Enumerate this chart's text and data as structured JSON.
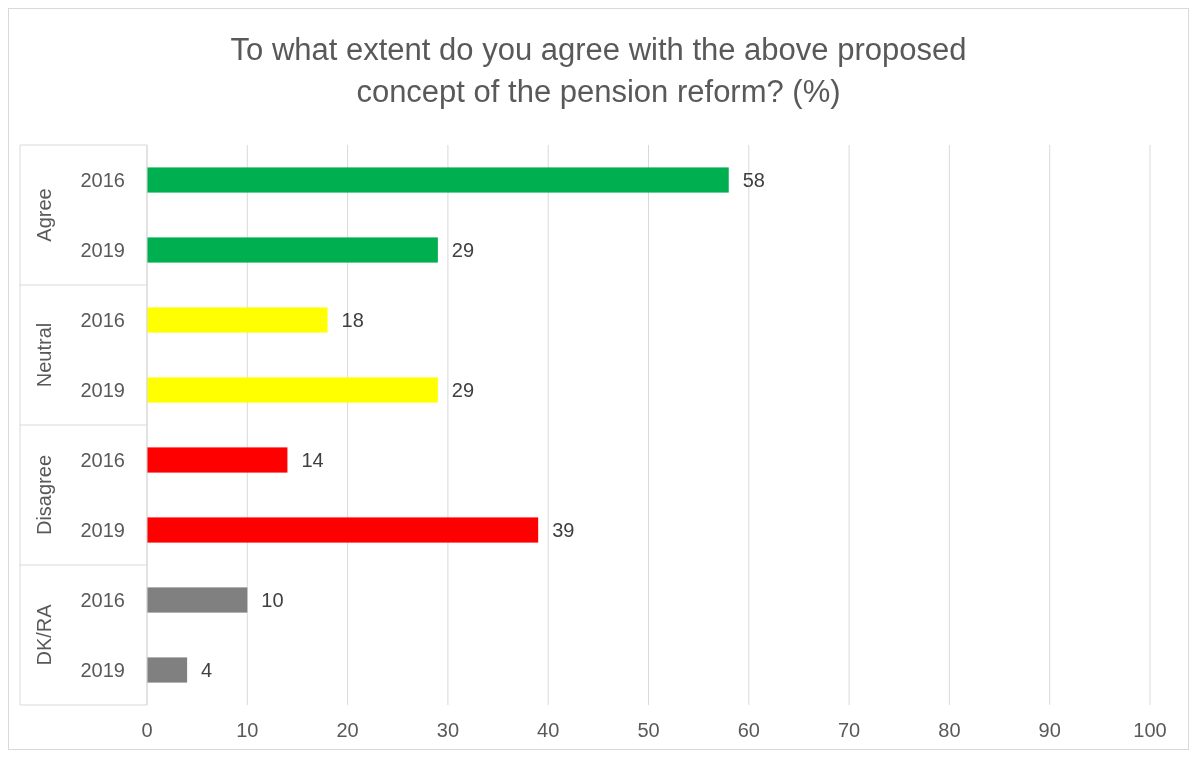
{
  "chart_data": {
    "type": "bar",
    "orientation": "horizontal",
    "title": "To what extent do you agree with the above proposed concept of the pension reform? (%)",
    "categories": [
      "2016",
      "2019",
      "2016",
      "2019",
      "2016",
      "2019",
      "2016",
      "2019"
    ],
    "values": [
      58,
      29,
      18,
      29,
      14,
      39,
      10,
      4
    ],
    "colors": [
      "#00b050",
      "#00b050",
      "#ffff00",
      "#ffff00",
      "#ff0000",
      "#ff0000",
      "#808080",
      "#808080"
    ],
    "annotations": [
      "Agree",
      "Neutral",
      "Disagree",
      "DK/RA"
    ],
    "xlim": [
      0,
      100
    ],
    "xticks": [
      0,
      10,
      20,
      30,
      40,
      50,
      60,
      70,
      80,
      90,
      100
    ],
    "grid": "x",
    "data_labels": true
  }
}
